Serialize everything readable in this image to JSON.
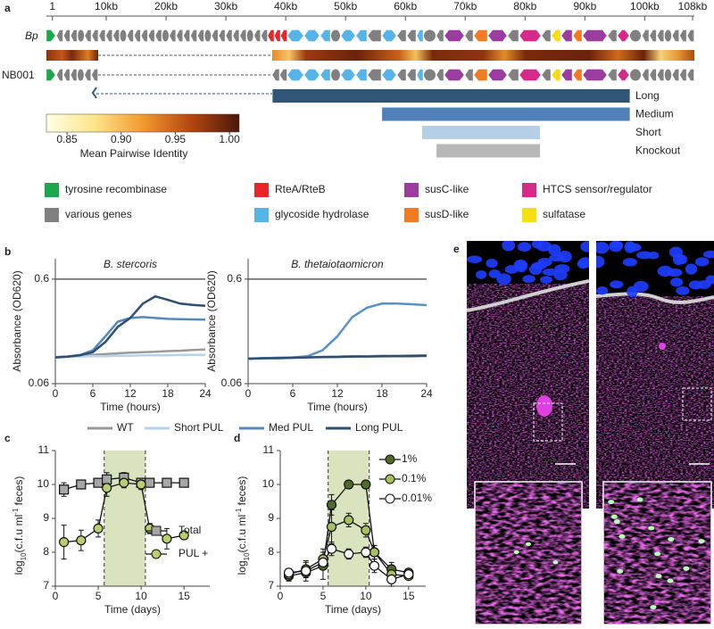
{
  "panel_labels": [
    "a",
    "b",
    "c",
    "d",
    "e"
  ],
  "genome": {
    "xlim": [
      0,
      108
    ],
    "ticks": [
      {
        "value": 1,
        "label": "1"
      },
      {
        "value": 10,
        "label": "10kb"
      },
      {
        "value": 20,
        "label": "20kb"
      },
      {
        "value": 30,
        "label": "30kb"
      },
      {
        "value": 40,
        "label": "40kb"
      },
      {
        "value": 50,
        "label": "50kb"
      },
      {
        "value": 60,
        "label": "60kb"
      },
      {
        "value": 70,
        "label": "70kb"
      },
      {
        "value": 80,
        "label": "80kb"
      },
      {
        "value": 90,
        "label": "90kb"
      },
      {
        "value": 100,
        "label": "100kb"
      },
      {
        "value": 108,
        "label": "108kb"
      }
    ],
    "tracks": [
      "Bp",
      "NB001"
    ],
    "regions": [
      {
        "name": "Long",
        "start": 37.8,
        "end": 97.5,
        "color": "#2f5577"
      },
      {
        "name": "Medium",
        "start": 56.1,
        "end": 97.5,
        "color": "#4f81b8"
      },
      {
        "name": "Short",
        "start": 62.8,
        "end": 82.5,
        "color": "#b5cfe8"
      },
      {
        "name": "Knockout",
        "start": 65.2,
        "end": 82.5,
        "color": "#b8b8b8"
      }
    ]
  },
  "identity_scale": {
    "label": "Mean Pairwise Identity",
    "range": [
      0.831,
      1.009
    ],
    "ticks": [
      {
        "value": 0.85,
        "label": "0.85"
      },
      {
        "value": 0.9,
        "label": "0.90"
      },
      {
        "value": 0.95,
        "label": "0.95"
      },
      {
        "value": 1,
        "label": "1.00"
      }
    ]
  },
  "gene_legend": [
    {
      "name": "tyrosine recombinase",
      "color": "#1aa84a"
    },
    {
      "name": "RteA/RteB",
      "color": "#e8262a"
    },
    {
      "name": "susC-like",
      "color": "#9b3d9e"
    },
    {
      "name": "HTCS sensor/regulator",
      "color": "#d62a8a"
    },
    {
      "name": "various genes",
      "color": "#808080"
    },
    {
      "name": "glycoside hydrolase",
      "color": "#56b4e9"
    },
    {
      "name": "susD-like",
      "color": "#f07b22"
    },
    {
      "name": "sulfatase",
      "color": "#f5de14"
    }
  ],
  "chart_data": [
    {
      "type": "line",
      "title": "B. stercoris",
      "xlabel": "Time (hours)",
      "ylabel": "Absorbance (OD620)",
      "x": [
        0,
        2,
        4,
        6,
        8,
        10,
        12,
        14,
        16,
        18,
        20,
        22,
        24
      ],
      "xlim": [
        0,
        24
      ],
      "xticks": [
        0,
        6,
        12,
        18,
        24
      ],
      "ylim": [
        0.06,
        0.94
      ],
      "yticks": [
        0.06,
        0.6
      ],
      "log_y": true,
      "grid": true,
      "series": [
        {
          "name": "WT",
          "color": "#9a9a9a",
          "values": [
            0.108,
            0.109,
            0.111,
            0.113,
            0.115,
            0.117,
            0.119,
            0.12,
            0.121,
            0.123,
            0.124,
            0.126,
            0.127
          ]
        },
        {
          "name": "Short PUL",
          "color": "#b7d2ec",
          "values": [
            0.107,
            0.108,
            0.109,
            0.11,
            0.11,
            0.111,
            0.111,
            0.112,
            0.112,
            0.112,
            0.113,
            0.113,
            0.113
          ]
        },
        {
          "name": "Med PUL",
          "color": "#5588bd",
          "values": [
            0.107,
            0.109,
            0.113,
            0.125,
            0.17,
            0.235,
            0.255,
            0.26,
            0.255,
            0.25,
            0.248,
            0.247,
            0.246
          ]
        },
        {
          "name": "Long PUL",
          "color": "#2c4f74",
          "values": [
            0.107,
            0.109,
            0.112,
            0.12,
            0.15,
            0.21,
            0.255,
            0.35,
            0.41,
            0.38,
            0.35,
            0.34,
            0.333
          ]
        }
      ]
    },
    {
      "type": "line",
      "title": "B. thetaiotaomicron",
      "xlabel": "Time (hours)",
      "ylabel": "Absorbance (OD620)",
      "x": [
        0,
        2,
        4,
        6,
        8,
        10,
        12,
        14,
        16,
        18,
        20,
        22,
        24
      ],
      "xlim": [
        0,
        24
      ],
      "xticks": [
        0,
        6,
        12,
        18,
        24
      ],
      "ylim": [
        0.06,
        0.94
      ],
      "yticks": [
        0.06,
        0.6
      ],
      "log_y": true,
      "grid": true,
      "series": [
        {
          "name": "WT",
          "color": "#9a9a9a",
          "values": [
            0.104,
            0.105,
            0.106,
            0.107,
            0.108,
            0.108,
            0.109,
            0.11,
            0.11,
            0.111,
            0.111,
            0.112,
            0.112
          ]
        },
        {
          "name": "Short PUL",
          "color": "#b7d2ec",
          "values": [
            0.103,
            0.104,
            0.105,
            0.106,
            0.107,
            0.107,
            0.108,
            0.108,
            0.109,
            0.109,
            0.11,
            0.11,
            0.11
          ]
        },
        {
          "name": "Med PUL",
          "color": "#5b90c4",
          "values": [
            0.104,
            0.105,
            0.106,
            0.107,
            0.11,
            0.125,
            0.17,
            0.26,
            0.32,
            0.35,
            0.35,
            0.345,
            0.338
          ]
        },
        {
          "name": "Long PUL",
          "color": "#2c4f74",
          "values": [
            0.104,
            0.105,
            0.105,
            0.106,
            0.107,
            0.108,
            0.108,
            0.109,
            0.109,
            0.11,
            0.11,
            0.11,
            0.111
          ]
        }
      ]
    },
    {
      "type": "errorline",
      "xlabel": "Time (days)",
      "ylabel": [
        "log",
        "10",
        "(c.f.u ml",
        "-1",
        " feces)"
      ],
      "x": [
        1,
        3,
        5,
        6,
        8,
        10,
        11,
        13,
        15
      ],
      "xlim": [
        0,
        18
      ],
      "xticks": [
        0,
        5,
        10,
        15
      ],
      "ylim": [
        7,
        11
      ],
      "yticks": [
        7,
        8,
        9,
        10,
        11
      ],
      "shaded": [
        5.7,
        10.5
      ],
      "shade_color": "#d9e4bf",
      "legend": "lower right",
      "series": [
        {
          "name": "Total",
          "color": "#a6a6a6",
          "marker": "square",
          "values": [
            9.85,
            10.0,
            10.05,
            10.15,
            10.2,
            10.05,
            10.05,
            10.05,
            10.05
          ],
          "errors": [
            0.2,
            0.1,
            0.1,
            0.2,
            0.15,
            0.1,
            0.1,
            0.1,
            0.1
          ]
        },
        {
          "name": "PUL +",
          "color": "#b9cf6e",
          "marker": "circle",
          "values": [
            8.3,
            8.35,
            8.7,
            9.9,
            10.05,
            10.0,
            8.7,
            8.4,
            8.5
          ],
          "errors": [
            0.5,
            0.3,
            0.25,
            0.25,
            0.15,
            0.15,
            0.15,
            0.3,
            0.1
          ]
        }
      ]
    },
    {
      "type": "errorline",
      "xlabel": "Time (days)",
      "ylabel": [
        "log",
        "10",
        "(c.f.u ml",
        "-1",
        " feces)"
      ],
      "x": [
        1,
        3,
        5,
        6,
        8,
        10,
        11,
        13,
        15
      ],
      "xlim": [
        0,
        17
      ],
      "xticks": [
        0,
        5,
        10,
        15
      ],
      "ylim": [
        7,
        11
      ],
      "yticks": [
        7,
        8,
        9,
        10,
        11
      ],
      "shaded": [
        5.6,
        10.4
      ],
      "shade_color": "#d9e4bf",
      "legend": "upper right",
      "series": [
        {
          "name": "1%",
          "color": "#4f6b2b",
          "marker": "circle",
          "values": [
            7.3,
            7.4,
            7.6,
            9.4,
            10.0,
            10.0,
            8.0,
            7.5,
            7.4
          ],
          "errors": [
            0.15,
            0.15,
            0.4,
            0.3,
            0.1,
            0.1,
            0.2,
            0.2,
            0.1
          ]
        },
        {
          "name": "0.1%",
          "color": "#a8bf60",
          "marker": "circle",
          "values": [
            7.35,
            7.5,
            7.8,
            8.75,
            8.95,
            8.65,
            8.0,
            7.35,
            7.3
          ],
          "errors": [
            0.1,
            0.2,
            0.3,
            0.5,
            0.2,
            0.2,
            0.2,
            0.2,
            0.1
          ]
        },
        {
          "name": "0.01%",
          "color": "#ffffff",
          "marker": "circle",
          "values": [
            7.4,
            7.45,
            7.7,
            8.1,
            7.95,
            8.0,
            7.6,
            7.2,
            7.35
          ],
          "errors": [
            0.1,
            0.3,
            0.1,
            0.2,
            0.15,
            0.15,
            0.2,
            0.2,
            0.1
          ]
        }
      ]
    }
  ]
}
